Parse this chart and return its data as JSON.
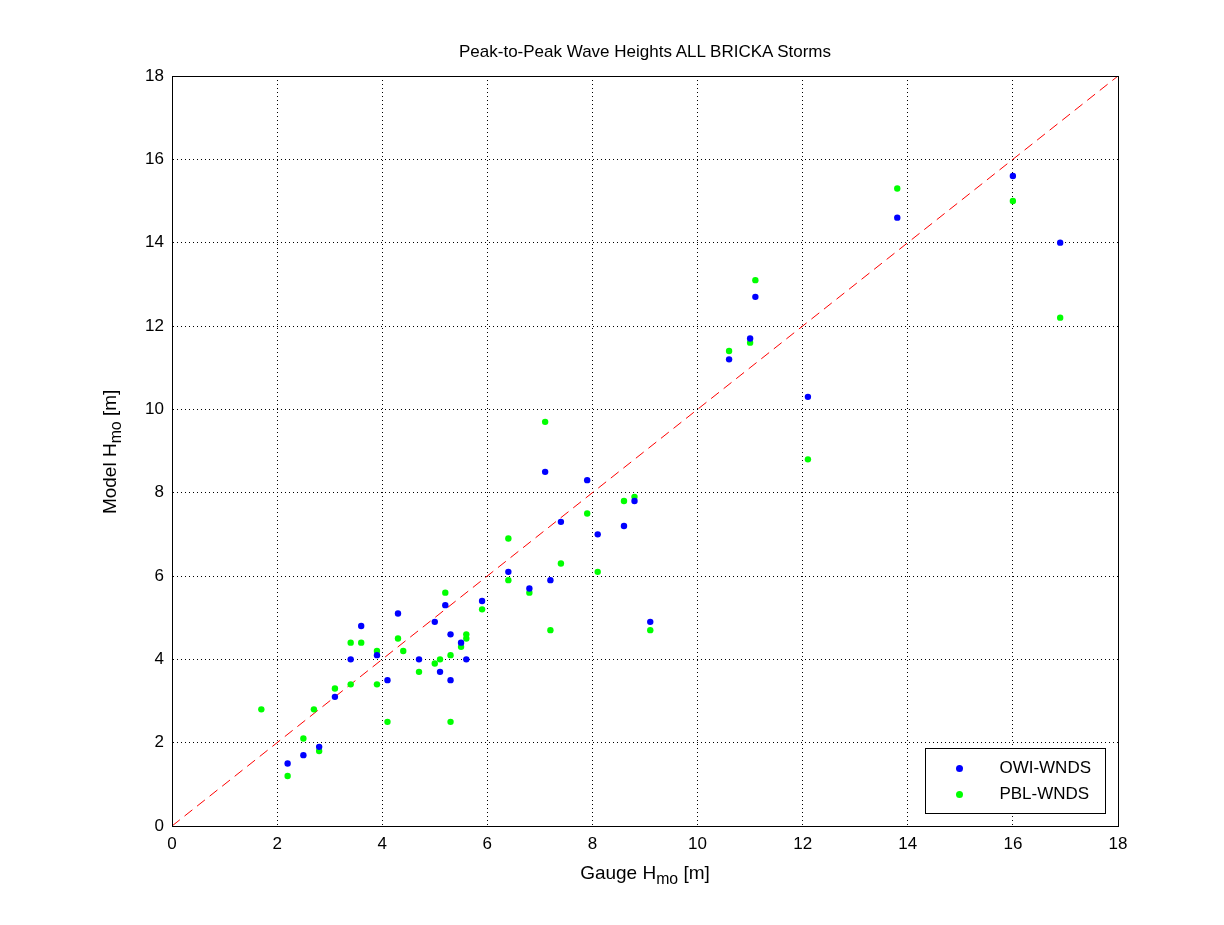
{
  "chart_data": {
    "type": "scatter",
    "title": "Peak-to-Peak Wave Heights ALL BRICKA Storms",
    "xlabel": "Gauge H$_{mo}$  [m]",
    "ylabel": "Model H$_{mo}$  [m]",
    "xlim": [
      0,
      18
    ],
    "ylim": [
      0,
      18
    ],
    "xticks": [
      0,
      2,
      4,
      6,
      8,
      10,
      12,
      14,
      16,
      18
    ],
    "yticks": [
      0,
      2,
      4,
      6,
      8,
      10,
      12,
      14,
      16,
      18
    ],
    "grid": true,
    "legend": "bottom right",
    "marker": "circle",
    "series": [
      {
        "name": "OWI-WNDS",
        "color": "#0000ff",
        "x": [
          2.2,
          2.5,
          2.8,
          3.1,
          3.4,
          3.6,
          3.9,
          4.1,
          4.3,
          4.7,
          5.0,
          5.1,
          5.2,
          5.3,
          5.3,
          5.5,
          5.6,
          5.9,
          6.4,
          6.8,
          7.1,
          7.2,
          7.4,
          7.9,
          8.1,
          8.6,
          8.8,
          9.1,
          10.6,
          11.0,
          11.1,
          12.1,
          13.8,
          16.0,
          16.9
        ],
        "values": [
          1.5,
          1.7,
          1.9,
          3.1,
          4.0,
          4.8,
          4.1,
          3.5,
          5.1,
          4.0,
          4.9,
          3.7,
          5.3,
          4.6,
          3.5,
          4.4,
          4.0,
          5.4,
          6.1,
          5.7,
          8.5,
          5.9,
          7.3,
          8.3,
          7.0,
          7.2,
          7.8,
          4.9,
          11.2,
          11.7,
          12.7,
          10.3,
          14.6,
          15.6,
          14.0
        ]
      },
      {
        "name": "PBL-WNDS",
        "color": "#00ff00",
        "x": [
          1.7,
          2.2,
          2.5,
          2.7,
          2.8,
          3.1,
          3.4,
          3.4,
          3.6,
          3.9,
          3.9,
          4.1,
          4.3,
          4.4,
          4.7,
          5.0,
          5.1,
          5.2,
          5.3,
          5.3,
          5.5,
          5.6,
          5.6,
          5.9,
          6.4,
          6.4,
          6.8,
          7.1,
          7.2,
          7.4,
          7.9,
          8.1,
          8.6,
          8.8,
          9.1,
          10.6,
          11.0,
          11.1,
          12.1,
          13.8,
          16.0,
          16.9
        ],
        "values": [
          2.8,
          1.2,
          2.1,
          2.8,
          1.8,
          3.3,
          3.4,
          4.4,
          4.4,
          4.2,
          3.4,
          2.5,
          4.5,
          4.2,
          3.7,
          3.9,
          4.0,
          5.6,
          4.1,
          2.5,
          4.3,
          4.5,
          4.6,
          5.2,
          6.9,
          5.9,
          5.6,
          9.7,
          4.7,
          6.3,
          7.5,
          6.1,
          7.8,
          7.9,
          4.7,
          11.4,
          11.6,
          13.1,
          8.8,
          15.3,
          15.0,
          12.2
        ]
      },
      {
        "type": "line",
        "color": "#ff0000",
        "line_style": "dashed",
        "marker": "none",
        "x": [
          0,
          18
        ],
        "values": [
          0,
          18
        ]
      }
    ]
  }
}
